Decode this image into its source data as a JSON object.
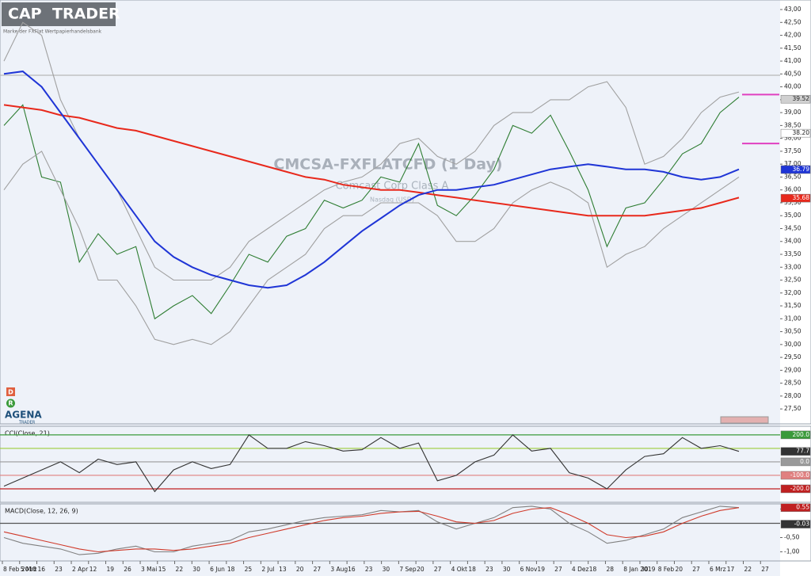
{
  "branding": {
    "logo_left": "CAP",
    "logo_right": "TRADER",
    "tagline": "Marke der FXFlat Wertpapierhandelsbank",
    "icon_d": "D",
    "icon_r": "R",
    "agena": "AGENA",
    "agena_sub": "TRADER"
  },
  "time_axis": {
    "labels": [
      "8 Feb 2018",
      "5 Mrz",
      "16",
      "23",
      "2 Apr",
      "12",
      "19",
      "26",
      "3 Mai",
      "15",
      "22",
      "30",
      "6 Jun",
      "18",
      "25",
      "2 Jul",
      "13",
      "20",
      "27",
      "3 Aug",
      "16",
      "23",
      "30",
      "7 Sep",
      "20",
      "27",
      "4 Okt",
      "18",
      "23",
      "30",
      "6 Nov",
      "19",
      "27",
      "4 Dez",
      "18",
      "28",
      "8 Jan 2019",
      "30",
      "8 Feb",
      "20",
      "27",
      "6 Mrz",
      "17",
      "22",
      "27"
    ]
  },
  "chart_data": [
    {
      "type": "line",
      "title": "CMCSA-FXFLATCFD (1 Day)",
      "subtitle": "Comcast Corp Class A",
      "note": "Nasdaq (USD)",
      "ylim": [
        26.92,
        43.37
      ],
      "yticks": [
        {
          "value": 43,
          "label": "43,00"
        },
        {
          "value": 42.5,
          "label": "42,50"
        },
        {
          "value": 42,
          "label": "42,00"
        },
        {
          "value": 41.5,
          "label": "41,50"
        },
        {
          "value": 41,
          "label": "41,00"
        },
        {
          "value": 40.5,
          "label": "40,50"
        },
        {
          "value": 40,
          "label": "40,00"
        },
        {
          "value": 39.5,
          "label": "39,50"
        },
        {
          "value": 39,
          "label": "39,00"
        },
        {
          "value": 38.5,
          "label": "38,50"
        },
        {
          "value": 38,
          "label": "38,00"
        },
        {
          "value": 37.5,
          "label": "37,50"
        },
        {
          "value": 37,
          "label": "37,00"
        },
        {
          "value": 36.5,
          "label": "36,50"
        },
        {
          "value": 36,
          "label": "36,00"
        },
        {
          "value": 35.5,
          "label": "35,50"
        },
        {
          "value": 35,
          "label": "35,00"
        },
        {
          "value": 34.5,
          "label": "34,50"
        },
        {
          "value": 34,
          "label": "34,00"
        },
        {
          "value": 33.5,
          "label": "33,50"
        },
        {
          "value": 33,
          "label": "33,00"
        },
        {
          "value": 32.5,
          "label": "32,50"
        },
        {
          "value": 32,
          "label": "32,00"
        },
        {
          "value": 31.5,
          "label": "31,50"
        },
        {
          "value": 31,
          "label": "31,00"
        },
        {
          "value": 30.5,
          "label": "30,50"
        },
        {
          "value": 30,
          "label": "30,00"
        },
        {
          "value": 29.5,
          "label": "29,50"
        },
        {
          "value": 29,
          "label": "29,00"
        },
        {
          "value": 28.5,
          "label": "28,50"
        },
        {
          "value": 28,
          "label": "28,00"
        },
        {
          "value": 27.5,
          "label": "27,50"
        }
      ],
      "series": [
        {
          "color": "#2e7d32",
          "values": [
            38.5,
            39.3,
            36.5,
            36.3,
            33.2,
            34.3,
            33.5,
            33.8,
            31.0,
            31.5,
            31.9,
            31.2,
            32.3,
            33.5,
            33.2,
            34.2,
            34.5,
            35.6,
            35.3,
            35.6,
            36.5,
            36.3,
            37.8,
            35.4,
            35.0,
            35.8,
            36.8,
            38.5,
            38.2,
            38.9,
            37.5,
            36.0,
            33.8,
            35.3,
            35.5,
            36.4,
            37.4,
            37.8,
            39.0,
            39.6
          ]
        },
        {
          "color": "#a0a0a0",
          "values": [
            41.0,
            42.5,
            42.0,
            39.5,
            38.0,
            37.0,
            36.0,
            34.5,
            33.0,
            32.5,
            32.5,
            32.5,
            33.0,
            34.0,
            34.5,
            35.0,
            35.5,
            36.0,
            36.3,
            36.5,
            37.0,
            37.8,
            38.0,
            37.3,
            37.0,
            37.5,
            38.5,
            39.0,
            39.0,
            39.5,
            39.5,
            40.0,
            40.2,
            39.2,
            37.0,
            37.3,
            38.0,
            39.0,
            39.6,
            39.8
          ]
        },
        {
          "color": "#a0a0a0",
          "values": [
            36.0,
            37.0,
            37.5,
            36.0,
            34.5,
            32.5,
            32.5,
            31.5,
            30.2,
            30.0,
            30.2,
            30.0,
            30.5,
            31.5,
            32.5,
            33.0,
            33.5,
            34.5,
            35.0,
            35.0,
            35.5,
            35.5,
            35.5,
            35.0,
            34.0,
            34.0,
            34.5,
            35.5,
            36.0,
            36.3,
            36.0,
            35.5,
            33.0,
            33.5,
            33.8,
            34.5,
            35.0,
            35.5,
            36.0,
            36.5
          ]
        },
        {
          "color": "#e8291c",
          "values": [
            39.3,
            39.2,
            39.1,
            38.9,
            38.8,
            38.6,
            38.4,
            38.3,
            38.1,
            37.9,
            37.7,
            37.5,
            37.3,
            37.1,
            36.9,
            36.7,
            36.5,
            36.4,
            36.2,
            36.1,
            36.0,
            36.0,
            35.9,
            35.8,
            35.7,
            35.6,
            35.5,
            35.4,
            35.3,
            35.2,
            35.1,
            35.0,
            35.0,
            35.0,
            35.0,
            35.1,
            35.2,
            35.3,
            35.5,
            35.7
          ]
        },
        {
          "color": "#1f35d6",
          "values": [
            40.5,
            40.6,
            40.0,
            39.0,
            38.0,
            37.0,
            36.0,
            35.0,
            34.0,
            33.4,
            33.0,
            32.7,
            32.5,
            32.3,
            32.2,
            32.3,
            32.7,
            33.2,
            33.8,
            34.4,
            34.9,
            35.4,
            35.8,
            36.0,
            36.0,
            36.1,
            36.2,
            36.4,
            36.6,
            36.8,
            36.9,
            37.0,
            36.9,
            36.8,
            36.8,
            36.7,
            36.5,
            36.4,
            36.5,
            36.8
          ]
        }
      ],
      "levels": [
        {
          "value": 40.45,
          "color": "#b8b8b8"
        }
      ],
      "targets": [
        {
          "value": 39.7,
          "color": "#e040c0"
        },
        {
          "value": 37.8,
          "color": "#e040c0"
        }
      ],
      "markers": [
        {
          "value": 39.52,
          "label": "39.52",
          "color": "#d0d0d0"
        },
        {
          "value": 38.2,
          "label": "38.20",
          "color": "#ffffff"
        },
        {
          "value": 36.79,
          "label": "36.79",
          "color": "#1f35d6"
        },
        {
          "value": 35.68,
          "label": "35.68",
          "color": "#e8291c"
        }
      ]
    },
    {
      "type": "line",
      "title": "CCI(Close, 21)",
      "ylim": [
        -300,
        264
      ],
      "series": [
        {
          "color": "#333333",
          "values": [
            -180,
            -120,
            -60,
            0,
            -80,
            20,
            -20,
            0,
            -220,
            -60,
            0,
            -50,
            -20,
            200,
            100,
            100,
            150,
            120,
            80,
            90,
            180,
            100,
            140,
            -140,
            -100,
            0,
            50,
            200,
            80,
            100,
            -80,
            -120,
            -200,
            -60,
            40,
            60,
            180,
            100,
            120,
            77.7
          ]
        }
      ],
      "levels": [
        {
          "value": 200,
          "color": "#3a9a3a"
        },
        {
          "value": 100,
          "color": "#9ccc3a"
        },
        {
          "value": 0,
          "color": "#9a9a9a"
        },
        {
          "value": -100,
          "color": "#e08080"
        },
        {
          "value": -200,
          "color": "#c02020"
        }
      ],
      "markers": [
        {
          "value": 200,
          "label": "200.0",
          "color": "#3a9a3a"
        },
        {
          "value": 77.7,
          "label": "77.7",
          "color": "#333333"
        },
        {
          "value": 0,
          "label": "0.0",
          "color": "#9a9a9a"
        },
        {
          "value": -100,
          "label": "-100.0",
          "color": "#e08080"
        },
        {
          "value": -200,
          "label": "-200.0",
          "color": "#c02020"
        }
      ]
    },
    {
      "type": "line",
      "title": "MACD(Close, 12, 26, 9)",
      "ylim": [
        -1.32,
        0.68
      ],
      "yticks": [
        {
          "value": 0.5,
          "label": "0,50"
        },
        {
          "value": -0.5,
          "label": "-0,50"
        },
        {
          "value": -1,
          "label": "-1,00"
        }
      ],
      "series": [
        {
          "color": "#808080",
          "values": [
            -0.5,
            -0.7,
            -0.8,
            -0.9,
            -1.1,
            -1.05,
            -0.9,
            -0.8,
            -1.0,
            -1.0,
            -0.8,
            -0.7,
            -0.6,
            -0.3,
            -0.2,
            -0.05,
            0.1,
            0.2,
            0.25,
            0.3,
            0.45,
            0.4,
            0.45,
            0.05,
            -0.2,
            0.0,
            0.2,
            0.55,
            0.6,
            0.5,
            0.0,
            -0.3,
            -0.7,
            -0.6,
            -0.4,
            -0.2,
            0.2,
            0.4,
            0.6,
            0.55
          ]
        },
        {
          "color": "#d03a2a",
          "values": [
            -0.3,
            -0.45,
            -0.6,
            -0.75,
            -0.9,
            -1.0,
            -0.95,
            -0.9,
            -0.9,
            -0.95,
            -0.9,
            -0.8,
            -0.7,
            -0.5,
            -0.35,
            -0.2,
            -0.05,
            0.1,
            0.2,
            0.25,
            0.35,
            0.4,
            0.42,
            0.25,
            0.05,
            0.0,
            0.1,
            0.35,
            0.5,
            0.55,
            0.3,
            0.0,
            -0.4,
            -0.5,
            -0.45,
            -0.3,
            0.0,
            0.25,
            0.45,
            0.55
          ]
        }
      ],
      "levels": [
        {
          "value": 0,
          "color": "#555555"
        }
      ],
      "markers": [
        {
          "value": 0.55,
          "label": "0.55",
          "color": "#c02020"
        },
        {
          "value": -0.03,
          "label": "-0.03",
          "color": "#333333"
        }
      ]
    }
  ]
}
